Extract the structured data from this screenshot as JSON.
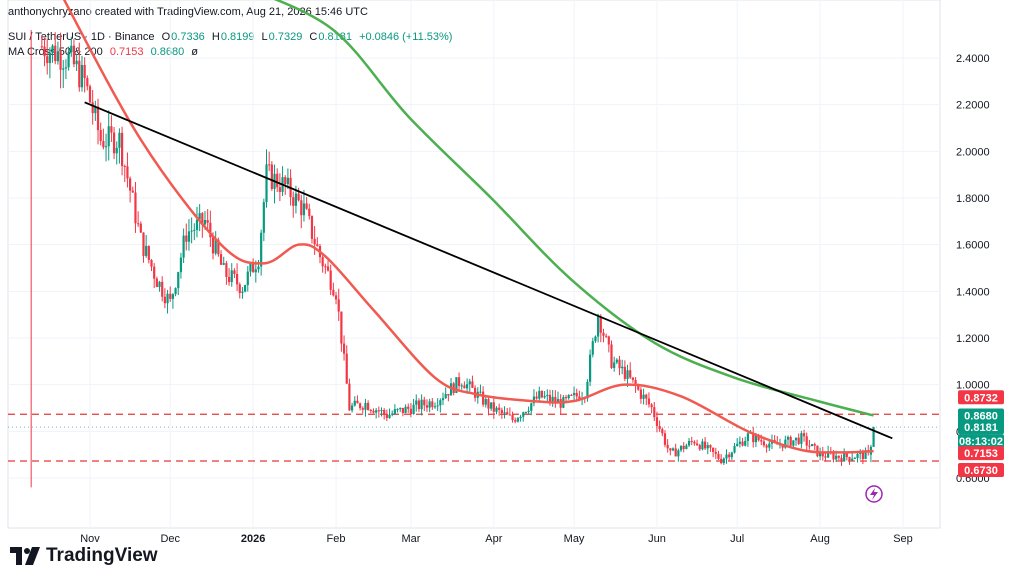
{
  "header": {
    "credit": "anthonychryzano created with TradingView.com, Aug 21, 2026 15:46 UTC"
  },
  "legend": {
    "symbol": "SUI / TetherUS · 1D · Binance",
    "o_key": "O",
    "o_val": "0.7336",
    "h_key": "H",
    "h_val": "0.8199",
    "l_key": "L",
    "l_val": "0.7329",
    "c_key": "C",
    "c_val": "0.8181",
    "change": "+0.0846 (+11.53%)",
    "ma_label": "MA Cross 50 & 200",
    "ma50": "0.7153",
    "ma200": "0.8680",
    "eye": "ø"
  },
  "brand": {
    "name": "TradingView"
  },
  "colors": {
    "up": "#089981",
    "down": "#f23645",
    "ma50": "#f05a50",
    "ma200": "#4caf50",
    "trend": "#000000",
    "level": "#e53935",
    "grid": "#f0f3fa"
  },
  "chart_data": {
    "type": "candlestick",
    "symbol": "SUI / TetherUS",
    "interval": "1D",
    "ylim": [
      0.53,
      2.52
    ],
    "y_ticks": [
      "2.4000",
      "2.2000",
      "2.0000",
      "1.8000",
      "1.6000",
      "1.4000",
      "1.2000",
      "1.0000",
      "0.8000",
      "0.6000"
    ],
    "x_ticks": [
      "Nov",
      "Dec",
      "2026",
      "Feb",
      "Mar",
      "Apr",
      "May",
      "Jun",
      "Jul",
      "Aug",
      "Sep"
    ],
    "price_badges": [
      {
        "value": "0.8732",
        "kind": "level"
      },
      {
        "value": "0.8680",
        "kind": "ma200"
      },
      {
        "value": "0.8181",
        "kind": "last"
      },
      {
        "value": "08:13:02",
        "kind": "countdown"
      },
      {
        "value": "0.7153",
        "kind": "ma50"
      },
      {
        "value": "0.6730",
        "kind": "level"
      }
    ],
    "horizontal_levels": [
      0.8732,
      0.673
    ],
    "last_close": 0.8181,
    "trendline": {
      "from": {
        "date": "2025-10-30",
        "price": 2.21
      },
      "to": {
        "date": "2026-08-28",
        "price": 0.77
      }
    },
    "ma50_series": [
      {
        "date": "2025-10-20",
        "v": 2.7
      },
      {
        "date": "2025-11-20",
        "v": 2.05
      },
      {
        "date": "2025-12-20",
        "v": 1.6
      },
      {
        "date": "2026-01-05",
        "v": 1.52
      },
      {
        "date": "2026-01-18",
        "v": 1.6
      },
      {
        "date": "2026-01-28",
        "v": 1.55
      },
      {
        "date": "2026-02-15",
        "v": 1.32
      },
      {
        "date": "2026-03-10",
        "v": 1.03
      },
      {
        "date": "2026-03-25",
        "v": 0.96
      },
      {
        "date": "2026-04-15",
        "v": 0.93
      },
      {
        "date": "2026-05-01",
        "v": 0.93
      },
      {
        "date": "2026-05-20",
        "v": 1.0
      },
      {
        "date": "2026-06-10",
        "v": 0.95
      },
      {
        "date": "2026-07-05",
        "v": 0.8
      },
      {
        "date": "2026-07-25",
        "v": 0.72
      },
      {
        "date": "2026-08-10",
        "v": 0.71
      },
      {
        "date": "2026-08-21",
        "v": 0.7153
      }
    ],
    "ma200_series": [
      {
        "date": "2025-12-30",
        "v": 2.7
      },
      {
        "date": "2026-01-31",
        "v": 2.52
      },
      {
        "date": "2026-02-28",
        "v": 2.15
      },
      {
        "date": "2026-03-31",
        "v": 1.8
      },
      {
        "date": "2026-04-30",
        "v": 1.45
      },
      {
        "date": "2026-05-31",
        "v": 1.18
      },
      {
        "date": "2026-06-30",
        "v": 1.03
      },
      {
        "date": "2026-07-31",
        "v": 0.93
      },
      {
        "date": "2026-08-21",
        "v": 0.868
      }
    ],
    "close_path": [
      {
        "date": "2025-10-14",
        "v": 2.45
      },
      {
        "date": "2025-10-24",
        "v": 2.4
      },
      {
        "date": "2025-10-30",
        "v": 2.3
      },
      {
        "date": "2025-11-05",
        "v": 2.05
      },
      {
        "date": "2025-11-12",
        "v": 2.05
      },
      {
        "date": "2025-11-20",
        "v": 1.62
      },
      {
        "date": "2025-11-26",
        "v": 1.45
      },
      {
        "date": "2025-12-01",
        "v": 1.35
      },
      {
        "date": "2025-12-07",
        "v": 1.65
      },
      {
        "date": "2025-12-14",
        "v": 1.7
      },
      {
        "date": "2025-12-21",
        "v": 1.48
      },
      {
        "date": "2025-12-28",
        "v": 1.42
      },
      {
        "date": "2026-01-03",
        "v": 1.55
      },
      {
        "date": "2026-01-06",
        "v": 1.9
      },
      {
        "date": "2026-01-13",
        "v": 1.85
      },
      {
        "date": "2026-01-20",
        "v": 1.75
      },
      {
        "date": "2026-01-26",
        "v": 1.55
      },
      {
        "date": "2026-02-01",
        "v": 1.4
      },
      {
        "date": "2026-02-06",
        "v": 0.9
      },
      {
        "date": "2026-02-12",
        "v": 0.92
      },
      {
        "date": "2026-02-20",
        "v": 0.87
      },
      {
        "date": "2026-03-01",
        "v": 0.9
      },
      {
        "date": "2026-03-10",
        "v": 0.93
      },
      {
        "date": "2026-03-20",
        "v": 1.02
      },
      {
        "date": "2026-03-31",
        "v": 0.9
      },
      {
        "date": "2026-04-08",
        "v": 0.85
      },
      {
        "date": "2026-04-18",
        "v": 0.95
      },
      {
        "date": "2026-04-27",
        "v": 0.92
      },
      {
        "date": "2026-05-05",
        "v": 0.97
      },
      {
        "date": "2026-05-10",
        "v": 1.3
      },
      {
        "date": "2026-05-15",
        "v": 1.1
      },
      {
        "date": "2026-05-20",
        "v": 1.05
      },
      {
        "date": "2026-05-30",
        "v": 0.9
      },
      {
        "date": "2026-06-06",
        "v": 0.7
      },
      {
        "date": "2026-06-15",
        "v": 0.76
      },
      {
        "date": "2026-06-25",
        "v": 0.68
      },
      {
        "date": "2026-07-05",
        "v": 0.78
      },
      {
        "date": "2026-07-15",
        "v": 0.74
      },
      {
        "date": "2026-07-25",
        "v": 0.77
      },
      {
        "date": "2026-08-01",
        "v": 0.7
      },
      {
        "date": "2026-08-10",
        "v": 0.69
      },
      {
        "date": "2026-08-19",
        "v": 0.7
      },
      {
        "date": "2026-08-20",
        "v": 0.7336
      },
      {
        "date": "2026-08-21",
        "v": 0.8181
      }
    ]
  }
}
